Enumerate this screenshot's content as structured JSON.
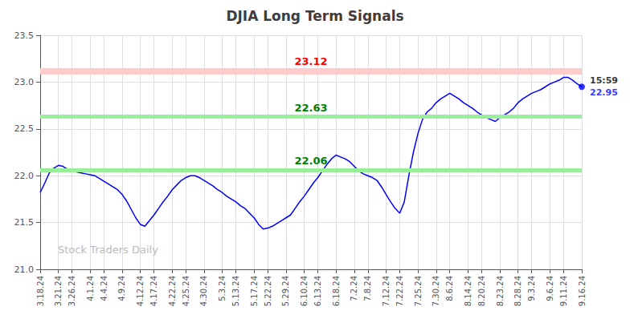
{
  "chart_data": {
    "type": "line",
    "title": "DJIA Long Term Signals",
    "categories": [
      "3.18.24",
      null,
      null,
      null,
      "3.21.24",
      null,
      null,
      "3.26.24",
      null,
      null,
      null,
      "4.1.24",
      null,
      null,
      "4.4.24",
      null,
      null,
      null,
      "4.9.24",
      null,
      null,
      null,
      "4.12.24",
      null,
      null,
      "4.17.24",
      null,
      null,
      null,
      "4.22.24",
      null,
      null,
      "4.25.24",
      null,
      null,
      null,
      "4.30.24",
      null,
      null,
      null,
      "5.3.24",
      null,
      null,
      "5.13.24",
      null,
      null,
      null,
      "5.17.24",
      null,
      null,
      "5.22.24",
      null,
      null,
      null,
      "5.29.24",
      null,
      null,
      null,
      "6.10.24",
      null,
      null,
      "6.13.24",
      null,
      null,
      null,
      "6.18.24",
      null,
      null,
      null,
      "7.2.24",
      null,
      null,
      "7.8.24",
      null,
      null,
      null,
      "7.12.24",
      null,
      null,
      "7.22.24",
      null,
      null,
      null,
      "7.25.24",
      null,
      null,
      null,
      "7.30.24",
      null,
      null,
      "8.6.24",
      null,
      null,
      null,
      "8.14.24",
      null,
      null,
      "8.20.24",
      null,
      null,
      null,
      "8.23.24",
      null,
      null,
      null,
      "8.28.24",
      null,
      null,
      "9.3.24",
      null,
      null,
      null,
      "9.6.24",
      null,
      null,
      "9.11.24",
      null,
      null,
      null,
      "9.16.24"
    ],
    "values": [
      21.82,
      21.92,
      22.03,
      22.08,
      22.11,
      22.1,
      22.07,
      22.05,
      22.04,
      22.03,
      22.02,
      22.01,
      22.0,
      21.97,
      21.94,
      21.91,
      21.88,
      21.85,
      21.8,
      21.73,
      21.64,
      21.55,
      21.48,
      21.46,
      21.52,
      21.58,
      21.65,
      21.72,
      21.78,
      21.85,
      21.9,
      21.95,
      21.98,
      22.0,
      22.0,
      21.98,
      21.95,
      21.92,
      21.89,
      21.85,
      21.82,
      21.78,
      21.75,
      21.72,
      21.68,
      21.65,
      21.6,
      21.55,
      21.48,
      21.43,
      21.44,
      21.46,
      21.49,
      21.52,
      21.55,
      21.58,
      21.65,
      21.72,
      21.78,
      21.85,
      21.92,
      21.98,
      22.05,
      22.12,
      22.18,
      22.22,
      22.2,
      22.18,
      22.15,
      22.1,
      22.05,
      22.02,
      22.0,
      21.98,
      21.95,
      21.88,
      21.8,
      21.72,
      21.65,
      21.6,
      21.72,
      22.0,
      22.25,
      22.45,
      22.6,
      22.68,
      22.72,
      22.78,
      22.82,
      22.85,
      22.88,
      22.85,
      22.82,
      22.78,
      22.75,
      22.72,
      22.68,
      22.65,
      22.62,
      22.6,
      22.58,
      22.62,
      22.65,
      22.68,
      22.72,
      22.78,
      22.82,
      22.85,
      22.88,
      22.9,
      22.92,
      22.95,
      22.98,
      23.0,
      23.02,
      23.05,
      23.05,
      23.02,
      22.98,
      22.95
    ],
    "color": "blue",
    "last_point": {
      "label": "15:59",
      "value": 22.95,
      "color": "blue"
    },
    "reference_lines": [
      {
        "value": 23.12,
        "color": "#ffcccc",
        "label_color": "red"
      },
      {
        "value": 22.63,
        "color": "#99ee99",
        "label_color": "green"
      },
      {
        "value": 22.06,
        "color": "#99ee99",
        "label_color": "green"
      }
    ],
    "watermark": {
      "text": "Stock Traders Daily",
      "color": "#bbbbbb"
    },
    "ylim": [
      21,
      23.5
    ],
    "yticks": [
      {
        "value": 21,
        "label": "21.0"
      },
      21.5,
      {
        "value": 22,
        "label": "22.0"
      },
      22.5,
      {
        "value": 23,
        "label": "23.0"
      },
      23.5
    ],
    "grid": true
  }
}
